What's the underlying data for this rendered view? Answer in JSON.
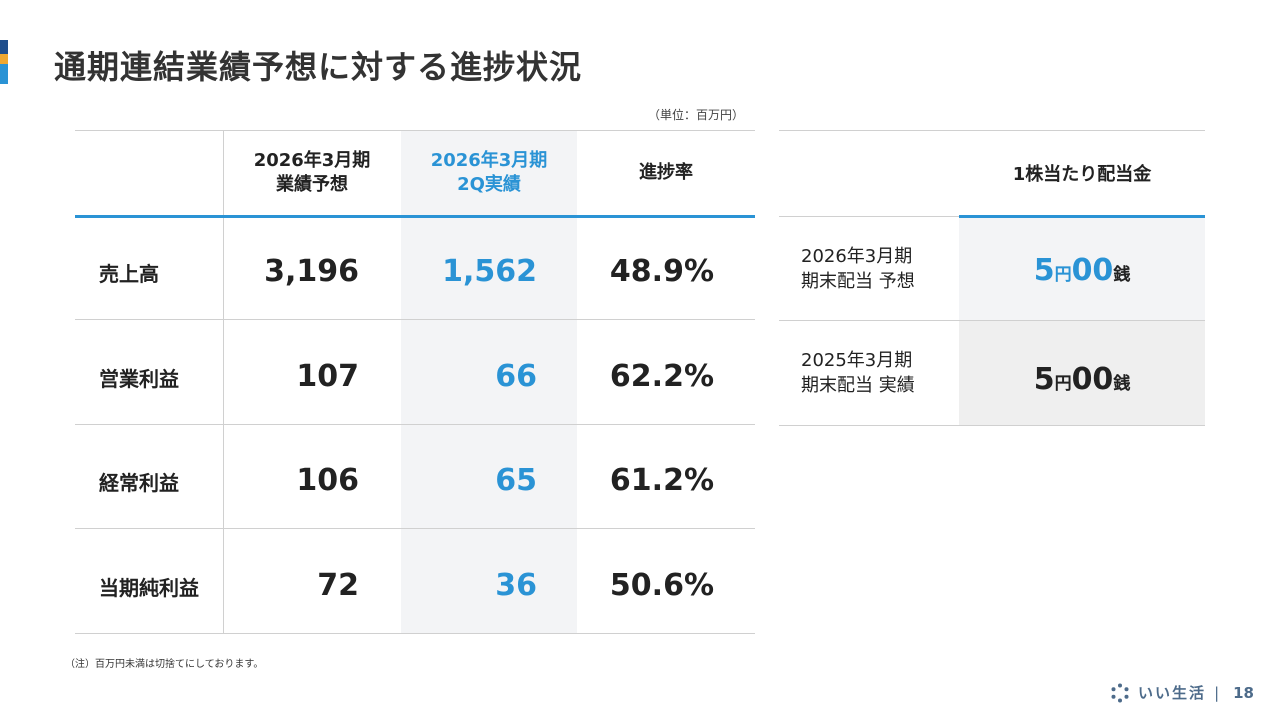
{
  "title": "通期連結業績予想に対する進捗状況",
  "unit_note": "（単位：百万円）",
  "colors": {
    "accent_blue": "#2a93d5",
    "accent_orange": "#f0a830",
    "accent_navy": "#1f4e8c",
    "text": "#222222"
  },
  "table": {
    "headers": {
      "forecast": [
        "2026年3月期",
        "業績予想"
      ],
      "actual": [
        "2026年3月期",
        "2Q実績"
      ],
      "progress": "進捗率"
    },
    "rows": [
      {
        "label": "売上高",
        "forecast": "3,196",
        "actual": "1,562",
        "progress": "48.9%"
      },
      {
        "label": "営業利益",
        "forecast": "107",
        "actual": "66",
        "progress": "62.2%"
      },
      {
        "label": "経常利益",
        "forecast": "106",
        "actual": "65",
        "progress": "61.2%"
      },
      {
        "label": "当期純利益",
        "forecast": "72",
        "actual": "36",
        "progress": "50.6%"
      }
    ]
  },
  "dividend": {
    "header": "1株当たり配当金",
    "rows": [
      {
        "label_line1": "2026年3月期",
        "label_line2": "期末配当 予想",
        "yen": "5",
        "yen_unit": "円",
        "sen": "00",
        "sen_unit": "銭",
        "highlight": true
      },
      {
        "label_line1": "2025年3月期",
        "label_line2": "期末配当 実績",
        "yen": "5",
        "yen_unit": "円",
        "sen": "00",
        "sen_unit": "銭",
        "highlight": false
      }
    ]
  },
  "footnote": "（注）百万円未満は切捨てにしております。",
  "footer": {
    "brand": "いい生活",
    "separator": "|",
    "page": "18",
    "logo_icon": "company-logo-icon"
  }
}
